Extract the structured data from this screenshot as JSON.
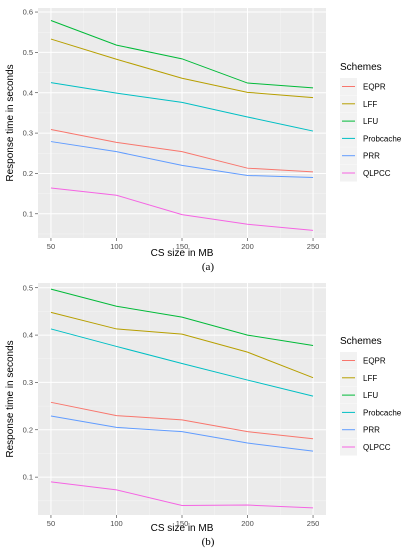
{
  "chart_data": [
    {
      "type": "line",
      "panel_label": "(a)",
      "xlabel": "CS size in MB",
      "ylabel": "Response time in seconds",
      "x": [
        50,
        100,
        150,
        200,
        250
      ],
      "xticks": [
        "50",
        "100",
        "150",
        "200",
        "250"
      ],
      "yticks": [
        "0.1",
        "0.2",
        "0.3",
        "0.4",
        "0.5",
        "0.6"
      ],
      "ylim": [
        0.04,
        0.61
      ],
      "legend_title": "Schemes",
      "legend_position": "right",
      "grid": true,
      "series": [
        {
          "name": "EQPR",
          "color": "#F8766D",
          "values": [
            0.309,
            0.277,
            0.254,
            0.213,
            0.204
          ]
        },
        {
          "name": "LFF",
          "color": "#B79F00",
          "values": [
            0.533,
            0.483,
            0.436,
            0.401,
            0.388
          ]
        },
        {
          "name": "LFU",
          "color": "#00BA38",
          "values": [
            0.579,
            0.518,
            0.484,
            0.424,
            0.412
          ]
        },
        {
          "name": "Probcache",
          "color": "#00BFC4",
          "values": [
            0.425,
            0.399,
            0.376,
            0.34,
            0.305
          ]
        },
        {
          "name": "PRR",
          "color": "#619CFF",
          "values": [
            0.279,
            0.254,
            0.22,
            0.195,
            0.19
          ]
        },
        {
          "name": "QLPCC",
          "color": "#F564E3",
          "values": [
            0.164,
            0.146,
            0.098,
            0.074,
            0.059
          ]
        }
      ]
    },
    {
      "type": "line",
      "panel_label": "(b)",
      "xlabel": "CS size in MB",
      "ylabel": "Response time in seconds",
      "x": [
        50,
        100,
        150,
        200,
        250
      ],
      "xticks": [
        "50",
        "100",
        "150",
        "200",
        "250"
      ],
      "yticks": [
        "0.1",
        "0.2",
        "0.3",
        "0.4",
        "0.5"
      ],
      "ylim": [
        0.02,
        0.51
      ],
      "legend_title": "Schemes",
      "legend_position": "right",
      "grid": true,
      "series": [
        {
          "name": "EQPR",
          "color": "#F8766D",
          "values": [
            0.258,
            0.23,
            0.221,
            0.196,
            0.181
          ]
        },
        {
          "name": "LFF",
          "color": "#B79F00",
          "values": [
            0.448,
            0.413,
            0.402,
            0.364,
            0.31
          ]
        },
        {
          "name": "LFU",
          "color": "#00BA38",
          "values": [
            0.497,
            0.461,
            0.438,
            0.4,
            0.378
          ]
        },
        {
          "name": "Probcache",
          "color": "#00BFC4",
          "values": [
            0.413,
            0.376,
            0.34,
            0.305,
            0.271
          ]
        },
        {
          "name": "PRR",
          "color": "#619CFF",
          "values": [
            0.229,
            0.205,
            0.196,
            0.172,
            0.155
          ]
        },
        {
          "name": "QLPCC",
          "color": "#F564E3",
          "values": [
            0.09,
            0.073,
            0.04,
            0.041,
            0.035
          ]
        }
      ]
    }
  ]
}
